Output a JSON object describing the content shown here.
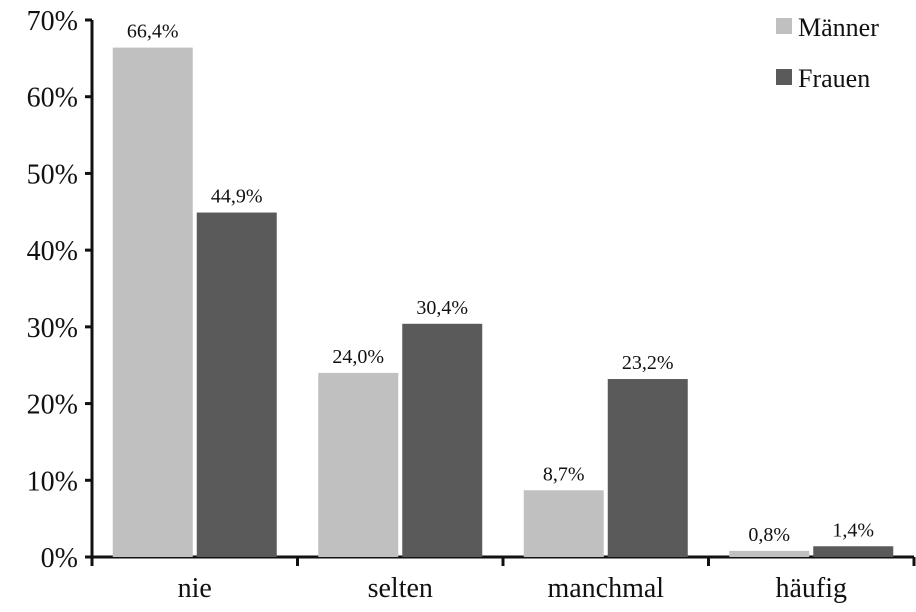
{
  "chart_data": {
    "type": "bar",
    "title": "",
    "xlabel": "",
    "ylabel": "",
    "categories": [
      "nie",
      "selten",
      "manchmal",
      "häufig"
    ],
    "series": [
      {
        "name": "Männer",
        "color": "#c0c0c0",
        "values": [
          66.4,
          24.0,
          8.7,
          0.8
        ],
        "labels": [
          "66,4%",
          "24,0%",
          "8,7%",
          "0,8%"
        ]
      },
      {
        "name": "Frauen",
        "color": "#5a5a5a",
        "values": [
          44.9,
          30.4,
          23.2,
          1.4
        ],
        "labels": [
          "44,9%",
          "30,4%",
          "23,2%",
          "1,4%"
        ]
      }
    ],
    "ylim": [
      0,
      70
    ],
    "yticks": [
      0,
      10,
      20,
      30,
      40,
      50,
      60,
      70
    ],
    "ytick_labels": [
      "0%",
      "10%",
      "20%",
      "30%",
      "40%",
      "50%",
      "60%",
      "70%"
    ],
    "grid": false,
    "legend_position": "top-right"
  }
}
